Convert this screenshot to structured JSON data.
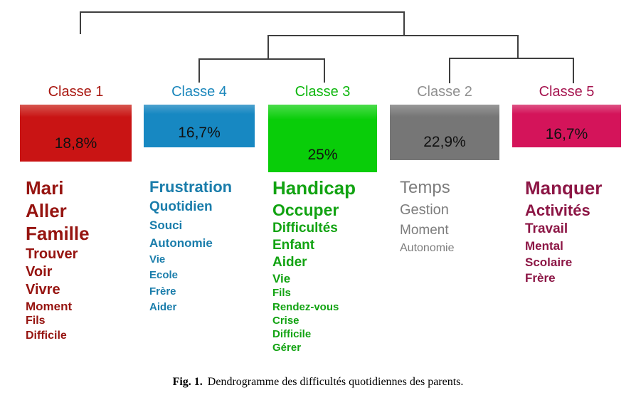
{
  "chart_data": {
    "type": "dendrogram",
    "title": "Dendrogramme des difficultés quotidiennes des parents",
    "hierarchy": "(Classe 1, ((Classe 4, Classe 3), (Classe 2, Classe 5)))",
    "tree_color": "#3f3f3f",
    "categories": [
      "Classe 1",
      "Classe 4",
      "Classe 3",
      "Classe 2",
      "Classe 5"
    ],
    "values": [
      18.8,
      16.7,
      25,
      22.9,
      16.7
    ],
    "classes": [
      {
        "name": "Classe 1",
        "percentage_label": "18,8%",
        "percentage_value": 18.8,
        "box_color": "#c91414",
        "box_color_top": "#d7564f",
        "label_color": "#a8160f",
        "word_color": "#961410",
        "word_weight": 700,
        "words": [
          {
            "text": "Mari",
            "size": 26
          },
          {
            "text": "Aller",
            "size": 26
          },
          {
            "text": "Famille",
            "size": 26
          },
          {
            "text": "Trouver",
            "size": 20
          },
          {
            "text": "Voir",
            "size": 20
          },
          {
            "text": "Vivre",
            "size": 20
          },
          {
            "text": "Moment",
            "size": 17
          },
          {
            "text": "Fils",
            "size": 16
          },
          {
            "text": "Difficile",
            "size": 16
          }
        ]
      },
      {
        "name": "Classe 4",
        "percentage_label": "16,7%",
        "percentage_value": 16.7,
        "box_color": "#1788c2",
        "box_color_top": "#4da2cf",
        "label_color": "#1a86bb",
        "word_color": "#1a7dab",
        "word_weight": 700,
        "words": [
          {
            "text": "Frustration",
            "size": 22
          },
          {
            "text": "Quotidien",
            "size": 19
          },
          {
            "text": "Souci",
            "size": 17
          },
          {
            "text": "Autonomie",
            "size": 17
          },
          {
            "text": "Vie",
            "size": 15
          },
          {
            "text": "Ecole",
            "size": 15
          },
          {
            "text": "Frère",
            "size": 15
          },
          {
            "text": "Aider",
            "size": 15
          }
        ]
      },
      {
        "name": "Classe 3",
        "percentage_label": "25%",
        "percentage_value": 25,
        "box_color": "#09cd09",
        "box_color_top": "#4bdc4b",
        "label_color": "#0db60d",
        "word_color": "#12a312",
        "word_weight": 700,
        "words": [
          {
            "text": "Handicap",
            "size": 26
          },
          {
            "text": "Occuper",
            "size": 23
          },
          {
            "text": "Difficultés",
            "size": 19
          },
          {
            "text": "Enfant",
            "size": 19
          },
          {
            "text": "Aider",
            "size": 19
          },
          {
            "text": "Vie",
            "size": 17
          },
          {
            "text": "Fils",
            "size": 15
          },
          {
            "text": "Rendez-vous",
            "size": 15
          },
          {
            "text": "Crise",
            "size": 15
          },
          {
            "text": "Difficile",
            "size": 15
          },
          {
            "text": "Gérer",
            "size": 15
          }
        ]
      },
      {
        "name": "Classe 2",
        "percentage_label": "22,9%",
        "percentage_value": 22.9,
        "box_color": "#767676",
        "box_color_top": "#989898",
        "label_color": "#8f8f8f",
        "word_color": "#7d7d7d",
        "word_weight": 400,
        "words": [
          {
            "text": "Temps",
            "size": 24
          },
          {
            "text": "Gestion",
            "size": 20
          },
          {
            "text": "Moment",
            "size": 19
          },
          {
            "text": "Autonomie",
            "size": 16
          }
        ]
      },
      {
        "name": "Classe 5",
        "percentage_label": "16,7%",
        "percentage_value": 16.7,
        "box_color": "#d4145a",
        "box_color_top": "#de5384",
        "label_color": "#a5134e",
        "word_color": "#8c1645",
        "word_weight": 700,
        "words": [
          {
            "text": "Manquer",
            "size": 26
          },
          {
            "text": "Activités",
            "size": 22
          },
          {
            "text": "Travail",
            "size": 19
          },
          {
            "text": "Mental",
            "size": 17
          },
          {
            "text": "Scolaire",
            "size": 17
          },
          {
            "text": "Frère",
            "size": 17
          }
        ]
      }
    ]
  },
  "caption": {
    "label": "Fig. 1.",
    "text": "Dendrogramme des difficultés quotidiennes des parents."
  }
}
